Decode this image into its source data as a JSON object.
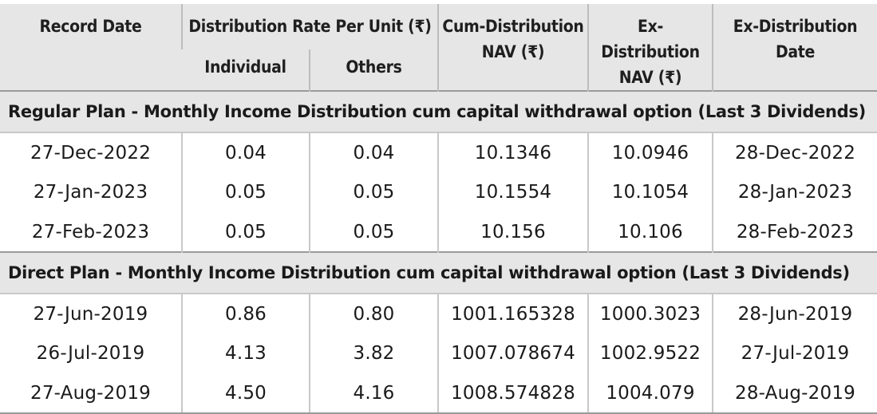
{
  "table": {
    "headers": {
      "record_date": "Record Date",
      "distribution_rate": "Distribution Rate Per Unit  (₹)",
      "individual": "Individual",
      "others": "Others",
      "cum_nav_line1": "Cum-Distribution",
      "cum_nav_line2": "NAV (₹)",
      "ex_nav_line1": "Ex-Distribution",
      "ex_nav_line2": "NAV (₹)",
      "ex_date_line1": "Ex-Distribution",
      "ex_date_line2": "Date"
    },
    "sections": [
      {
        "title": "Regular Plan - Monthly Income Distribution cum capital withdrawal option (Last 3 Dividends)",
        "rows": [
          [
            "27-Dec-2022",
            "0.04",
            "0.04",
            "10.1346",
            "10.0946",
            "28-Dec-2022"
          ],
          [
            "27-Jan-2023",
            "0.05",
            "0.05",
            "10.1554",
            "10.1054",
            "28-Jan-2023"
          ],
          [
            "27-Feb-2023",
            "0.05",
            "0.05",
            "10.156",
            "10.106",
            "28-Feb-2023"
          ]
        ]
      },
      {
        "title": "Direct Plan - Monthly Income Distribution cum capital withdrawal option (Last 3 Dividends)",
        "rows": [
          [
            "27-Jun-2019",
            "0.86",
            "0.80",
            "1001.165328",
            "1000.3023",
            "28-Jun-2019"
          ],
          [
            "26-Jul-2019",
            "4.13",
            "3.82",
            "1007.078674",
            "1002.9522",
            "27-Jul-2019"
          ],
          [
            "27-Aug-2019",
            "4.50",
            "4.16",
            "1008.574828",
            "1004.079",
            "28-Aug-2019"
          ]
        ]
      }
    ]
  }
}
